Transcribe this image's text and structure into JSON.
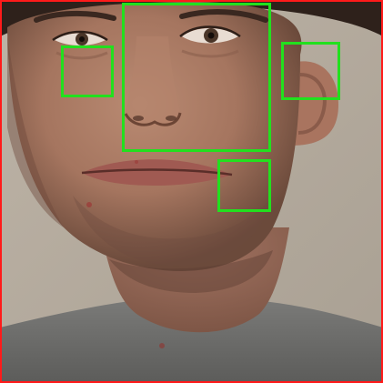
{
  "image": {
    "subject": "face-photo",
    "frame_color": "#ff1a1a",
    "box_color": "#22e01e",
    "background_color": "#b7ad9f"
  },
  "detections": [
    {
      "name": "detection-box-left-eye-region"
    },
    {
      "name": "detection-box-nose-region"
    },
    {
      "name": "detection-box-right-ear-region"
    },
    {
      "name": "detection-box-cheek-region"
    }
  ]
}
